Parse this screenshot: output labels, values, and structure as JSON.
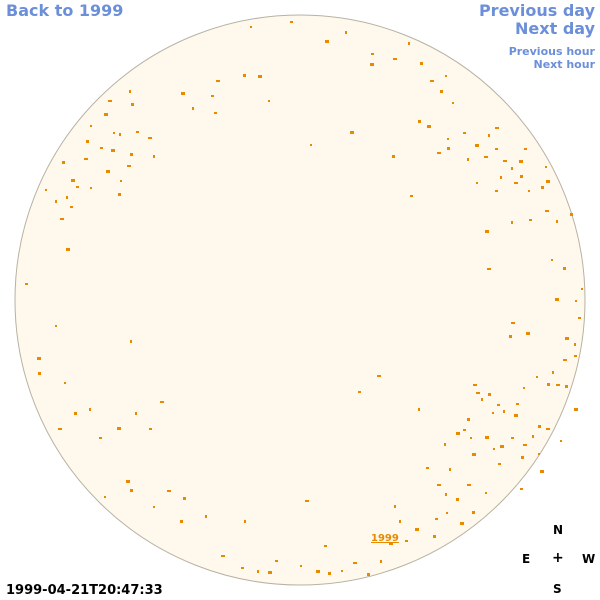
{
  "nav": {
    "back_label": "Back to 1999",
    "previous_day_label": "Previous day",
    "next_day_label": "Next day",
    "previous_hour_label": "Previous hour",
    "next_hour_label": "Next hour"
  },
  "timestamp": "1999-04-21T20:47:33",
  "year_label": "1999",
  "compass": {
    "north": "N",
    "east": "E",
    "center": "+",
    "west": "W",
    "south": "S"
  },
  "colors": {
    "disk_fill": "#fef9ec",
    "disk_stroke": "#b8b2a4",
    "feature": "#e88a00",
    "link": "#6b8fd8"
  }
}
